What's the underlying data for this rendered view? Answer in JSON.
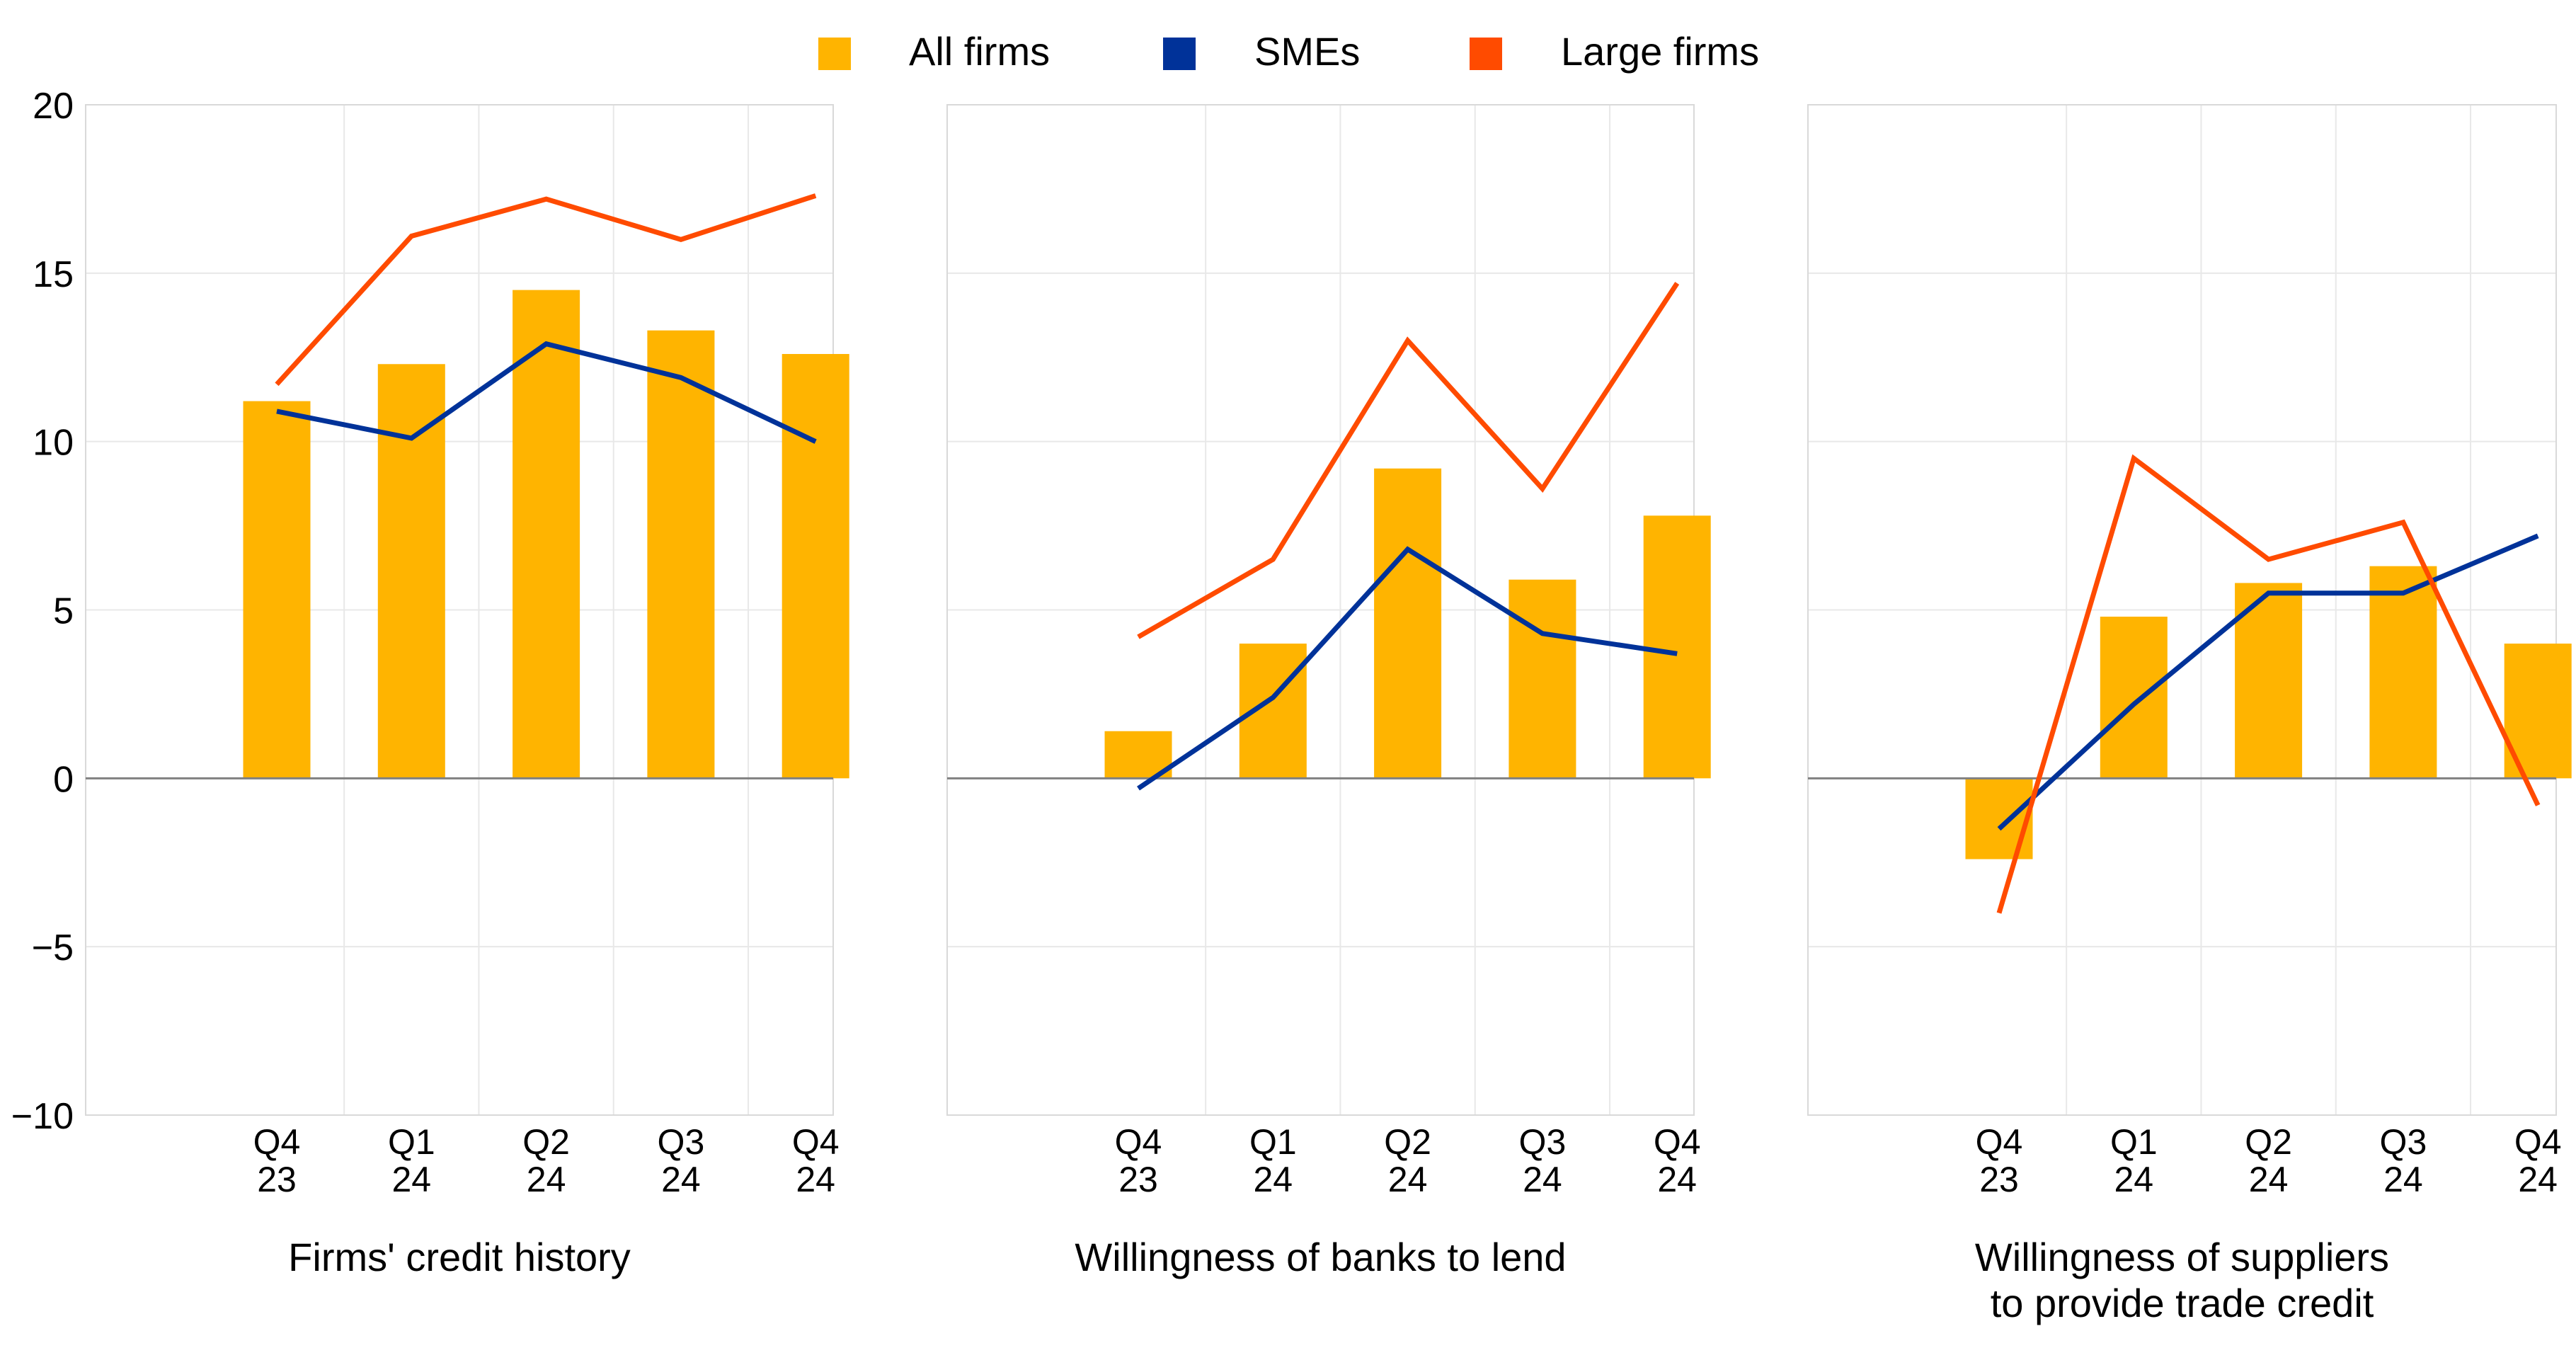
{
  "chart_data": [
    {
      "type": "bar",
      "title": "Firms' credit history",
      "categories": [
        [
          "Q4",
          "23"
        ],
        [
          "Q1",
          "24"
        ],
        [
          "Q2",
          "24"
        ],
        [
          "Q3",
          "24"
        ],
        [
          "Q4",
          "24"
        ]
      ],
      "ylim": [
        -10,
        20
      ],
      "yticks": [
        20,
        15,
        10,
        5,
        0,
        -5,
        -10
      ],
      "grid": true,
      "series": [
        {
          "name": "All firms",
          "type": "bar",
          "values": [
            11.2,
            12.3,
            14.5,
            13.3,
            12.6
          ]
        },
        {
          "name": "SMEs",
          "type": "line",
          "values": [
            10.9,
            10.1,
            12.9,
            11.9,
            10.0
          ]
        },
        {
          "name": "Large firms",
          "type": "line",
          "values": [
            11.7,
            16.1,
            17.2,
            16.0,
            17.3
          ]
        }
      ]
    },
    {
      "type": "bar",
      "title": "Willingness of banks to lend",
      "categories": [
        [
          "Q4",
          "23"
        ],
        [
          "Q1",
          "24"
        ],
        [
          "Q2",
          "24"
        ],
        [
          "Q3",
          "24"
        ],
        [
          "Q4",
          "24"
        ]
      ],
      "ylim": [
        -10,
        20
      ],
      "grid": true,
      "series": [
        {
          "name": "All firms",
          "type": "bar",
          "values": [
            1.4,
            4.0,
            9.2,
            5.9,
            7.8
          ]
        },
        {
          "name": "SMEs",
          "type": "line",
          "values": [
            -0.3,
            2.4,
            6.8,
            4.3,
            3.7
          ]
        },
        {
          "name": "Large firms",
          "type": "line",
          "values": [
            4.2,
            6.5,
            13.0,
            8.6,
            14.7
          ]
        }
      ]
    },
    {
      "type": "bar",
      "title": "Willingness of suppliers to provide trade credit",
      "title_lines": [
        "Willingness of suppliers",
        "to provide trade credit"
      ],
      "categories": [
        [
          "Q4",
          "23"
        ],
        [
          "Q1",
          "24"
        ],
        [
          "Q2",
          "24"
        ],
        [
          "Q3",
          "24"
        ],
        [
          "Q4",
          "24"
        ]
      ],
      "ylim": [
        -10,
        20
      ],
      "grid": true,
      "series": [
        {
          "name": "All firms",
          "type": "bar",
          "values": [
            -2.4,
            4.8,
            5.8,
            6.3,
            4.0
          ]
        },
        {
          "name": "SMEs",
          "type": "line",
          "values": [
            -1.5,
            2.2,
            5.5,
            5.5,
            7.2
          ]
        },
        {
          "name": "Large firms",
          "type": "line",
          "values": [
            -4.0,
            9.5,
            6.5,
            7.6,
            -0.8
          ]
        }
      ]
    }
  ],
  "legend": {
    "placement": "top-center",
    "items": [
      {
        "label": "All firms",
        "color": "#FFB400"
      },
      {
        "label": "SMEs",
        "color": "#003299"
      },
      {
        "label": "Large firms",
        "color": "#FF4B00"
      }
    ]
  },
  "colors": {
    "bar": "#FFB400",
    "smes": "#003299",
    "large_firms": "#FF4B00",
    "zero_line": "#808080",
    "grid": "#E8E8E8",
    "frame": "#D9D9D9"
  }
}
